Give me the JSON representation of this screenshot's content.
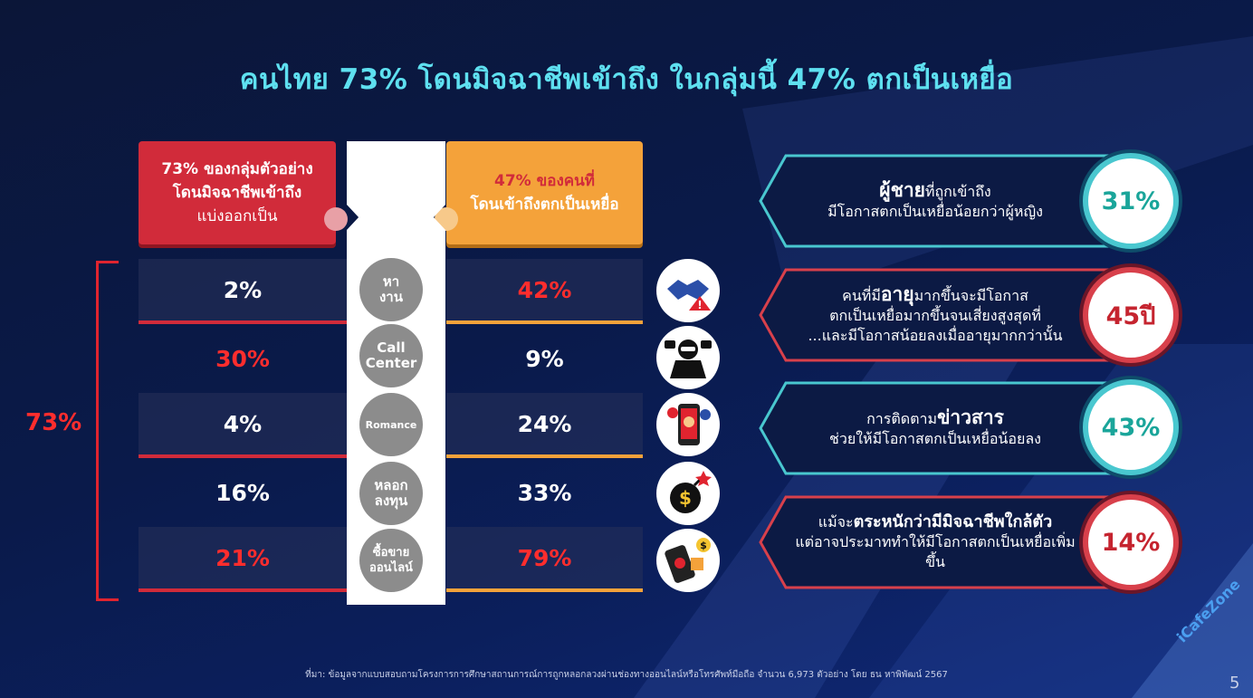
{
  "title": "คนไทย 73% โดนมิจฉาชีพเข้าถึง ในกลุ่มนี้ 47% ตกเป็นเหยื่อ",
  "left_header": {
    "line1": "73% ของกลุ่มตัวอย่าง",
    "line2": "โดนมิจฉาชีพเข้าถึง",
    "line3": "แบ่งออกเป็น"
  },
  "right_header": {
    "line1": "47% ของคนที่",
    "line2": "โดนเข้าถึงตกเป็นเหยื่อ"
  },
  "total_label": "73%",
  "rows": [
    {
      "category": "หา\nงาน",
      "left": "2%",
      "right": "42%",
      "icon": "handshake-warning-icon"
    },
    {
      "category": "Call\nCenter",
      "left": "30%",
      "right": "9%",
      "icon": "hacker-laptop-icon"
    },
    {
      "category": "Romance",
      "left": "4%",
      "right": "24%",
      "icon": "phone-romance-icon"
    },
    {
      "category": "หลอก\nลงทุน",
      "left": "16%",
      "right": "33%",
      "icon": "money-bomb-icon"
    },
    {
      "category": "ซื้อขาย\nออนไลน์",
      "left": "21%",
      "right": "79%",
      "icon": "phone-shopping-icon"
    }
  ],
  "insights": [
    {
      "line1_bold": "ผู้ชาย",
      "line1_rest": "ที่ถูกเข้าถึง",
      "line2": "มีโอกาสตกเป็นเหยื่อน้อยกว่าผู้หญิง",
      "line3": "",
      "value": "31%",
      "style": "teal"
    },
    {
      "line1_bold": "อายุ",
      "line1_pre": "คนที่มี",
      "line1_rest": "มากขึ้นจะมีโอกาส",
      "line2": "ตกเป็นเหยื่อมากขึ้นจนเสี่ยงสูงสุดที่",
      "line3": "...และมีโอกาสน้อยลงเมื่ออายุมากกว่านั้น",
      "value": "45ปี",
      "style": "red"
    },
    {
      "line1_pre": "การติดตาม",
      "line1_bold": "ข่าวสาร",
      "line1_rest": "",
      "line2": "ช่วยให้มีโอกาสตกเป็นเหยื่อน้อยลง",
      "line3": "",
      "value": "43%",
      "style": "teal"
    },
    {
      "line1_pre": "แม้จะ",
      "line1_bold": "ตระหนักว่ามีมิจฉาชีพใกล้ตัว",
      "line1_rest": "",
      "line2": "แต่อาจประมาททำให้มีโอกาสตกเป็นเหยื่อเพิ่มขึ้น",
      "line3": "",
      "value": "14%",
      "style": "red"
    }
  ],
  "footnote": "ที่มา: ข้อมูลจากแบบสอบถามโครงการการศึกษาสถานการณ์การถูกหลอกลวงผ่านช่องทางออนไลน์หรือโทรศัพท์มือถือ จำนวน 6,973 ตัวอย่าง โดย ธน หาพิพัฒน์ 2567",
  "page_number": "5",
  "watermark": "iCafeZone",
  "colors": {
    "accent_red": "#d12b3a",
    "accent_orange": "#f4a23a",
    "teal": "#49c7cf",
    "title": "#5ee0f0"
  }
}
